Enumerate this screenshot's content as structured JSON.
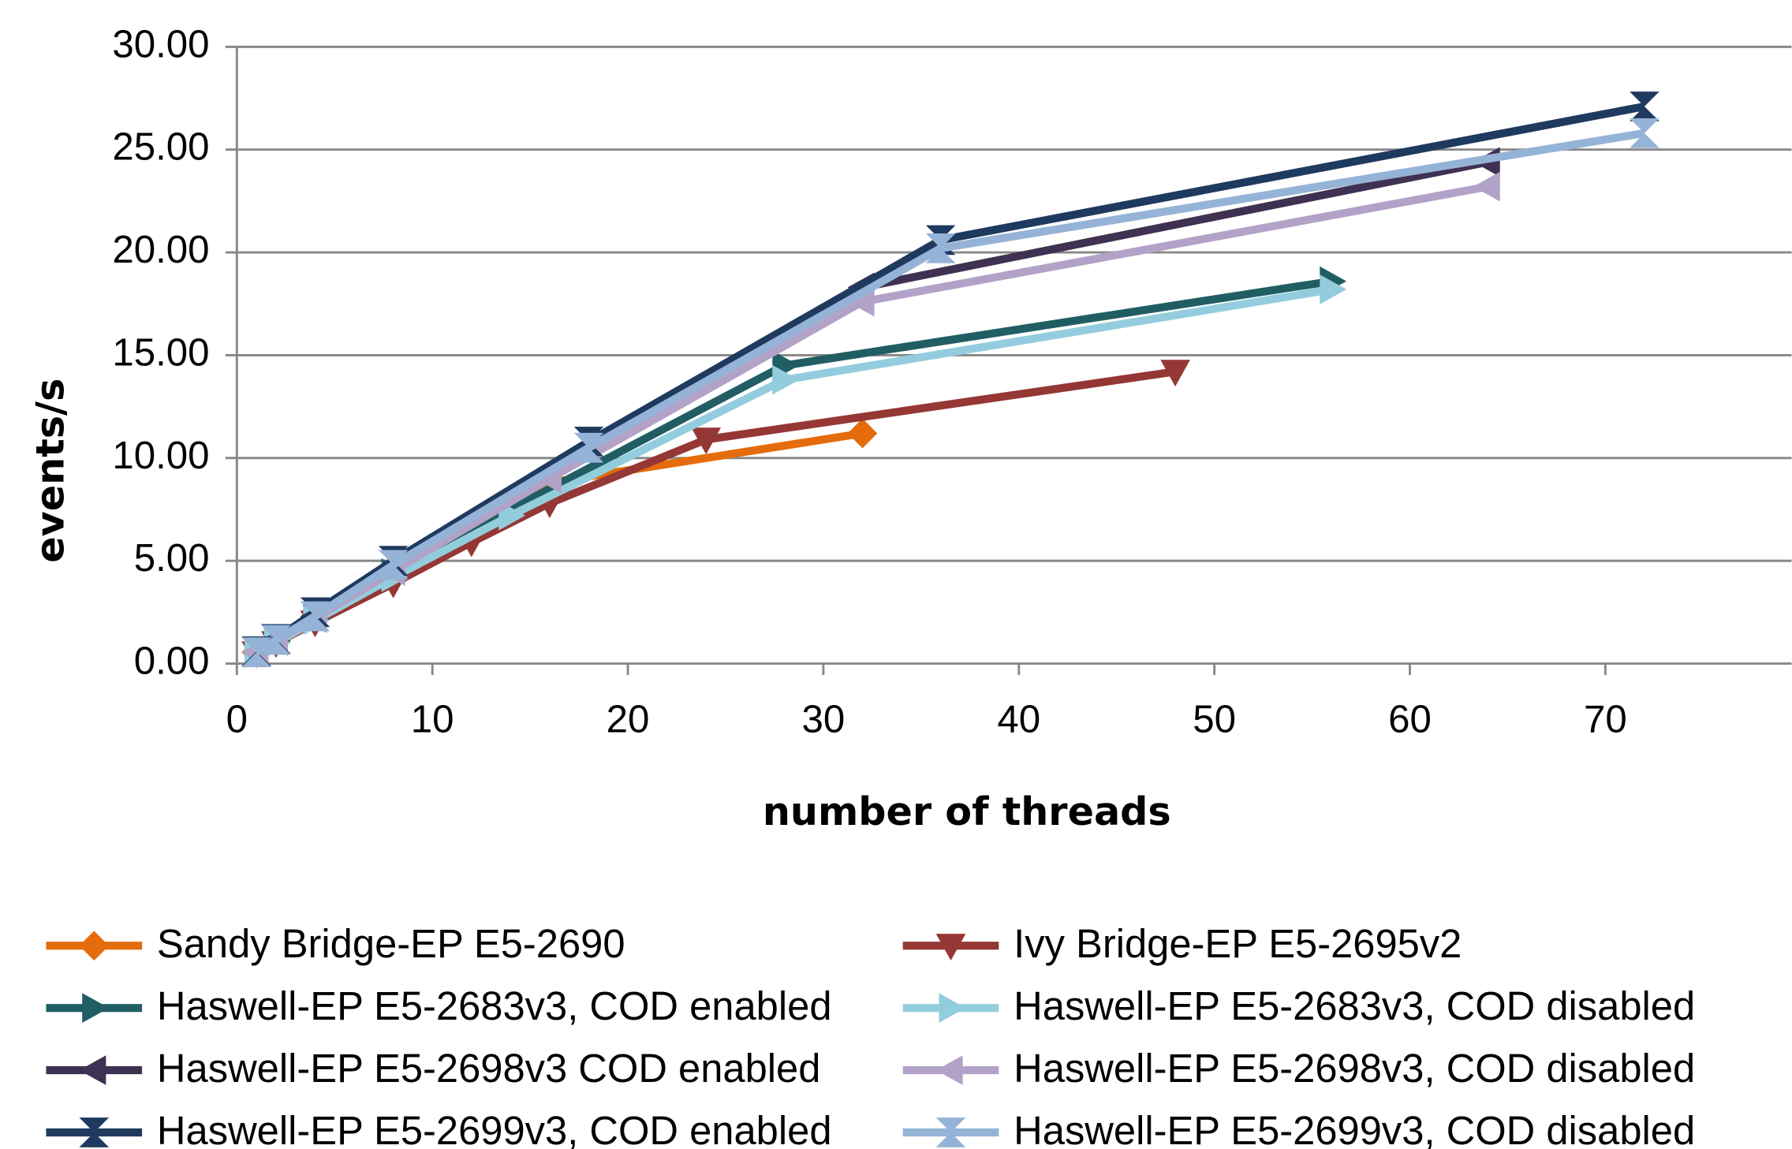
{
  "chart_data": {
    "type": "line",
    "y_label": "events/s",
    "x_label": "number of threads",
    "xlim": [
      0,
      80
    ],
    "ylim": [
      0,
      30
    ],
    "xticks": [
      0,
      10,
      20,
      30,
      40,
      50,
      60,
      70
    ],
    "yticks": [
      {
        "value": 0,
        "label": "0.00"
      },
      {
        "value": 5,
        "label": "5.00"
      },
      {
        "value": 10,
        "label": "10.00"
      },
      {
        "value": 15,
        "label": "15.00"
      },
      {
        "value": 20,
        "label": "20.00"
      },
      {
        "value": 25,
        "label": "25.00"
      },
      {
        "value": 30,
        "label": "30.00"
      }
    ],
    "grid": true,
    "legend": "bottom",
    "series": [
      {
        "name": "Sandy Bridge-EP E5-2690",
        "color": "#e46c0a",
        "marker": "diamond",
        "x": [
          1,
          2,
          4,
          8,
          16,
          32
        ],
        "values": [
          0.55,
          1.1,
          2.2,
          4.4,
          8.8,
          11.2
        ]
      },
      {
        "name": "Ivy Bridge-EP E5-2695v2",
        "color": "#953735",
        "marker": "triangle-down",
        "x": [
          1,
          2,
          4,
          8,
          12,
          16,
          24,
          48
        ],
        "values": [
          0.5,
          1.0,
          2.0,
          3.9,
          5.9,
          7.8,
          10.9,
          14.2
        ]
      },
      {
        "name": "Haswell-EP E5-2683v3, COD enabled",
        "color": "#215e64",
        "marker": "triangle-right",
        "x": [
          1,
          2,
          4,
          8,
          14,
          28,
          56
        ],
        "values": [
          0.55,
          1.1,
          2.2,
          4.4,
          7.5,
          14.5,
          18.6
        ]
      },
      {
        "name": "Haswell-EP E5-2683v3, COD disabled",
        "color": "#93cddd",
        "marker": "triangle-right",
        "x": [
          1,
          2,
          4,
          8,
          14,
          28,
          56
        ],
        "values": [
          0.5,
          1.0,
          2.1,
          4.2,
          7.2,
          13.8,
          18.2
        ]
      },
      {
        "name": "Haswell-EP E5-2698v3 COD enabled",
        "color": "#3f3151",
        "marker": "triangle-left",
        "x": [
          1,
          2,
          4,
          8,
          16,
          32,
          64
        ],
        "values": [
          0.55,
          1.15,
          2.3,
          4.6,
          9.3,
          18.3,
          24.4
        ]
      },
      {
        "name": "Haswell-EP E5-2698v3, COD disabled",
        "color": "#b3a2c7",
        "marker": "triangle-left",
        "x": [
          1,
          2,
          4,
          8,
          16,
          32,
          64
        ],
        "values": [
          0.55,
          1.1,
          2.2,
          4.5,
          9.0,
          17.6,
          23.2
        ]
      },
      {
        "name": "Haswell-EP E5-2699v3, COD enabled",
        "color": "#1f3a5f",
        "marker": "hourglass",
        "x": [
          1,
          2,
          4,
          8,
          18,
          36,
          72
        ],
        "values": [
          0.6,
          1.2,
          2.5,
          5.0,
          10.8,
          20.6,
          27.1
        ]
      },
      {
        "name": "Haswell-EP E5-2699v3, COD disabled",
        "color": "#95b3d7",
        "marker": "hourglass",
        "x": [
          1,
          2,
          4,
          8,
          18,
          36,
          72
        ],
        "values": [
          0.55,
          1.15,
          2.3,
          4.8,
          10.5,
          20.2,
          25.8
        ]
      }
    ]
  }
}
